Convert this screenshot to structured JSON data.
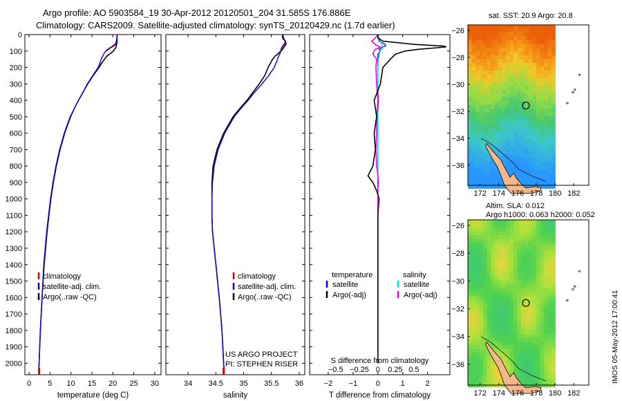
{
  "title": {
    "line1": "Argo profile: AO 5903584_19 30-Apr-2012 20120501_204 31.585S 176.886E",
    "line2": "Climatology: CARS2009. Satellite-adjusted climatology: synTS_20120429.nc (1.7d earlier)"
  },
  "stamp": "IMOS 05-May-2012 17:00:41",
  "depth_ticks": [
    0,
    100,
    200,
    300,
    400,
    500,
    600,
    700,
    800,
    900,
    1000,
    1100,
    1200,
    1300,
    1400,
    1500,
    1600,
    1700,
    1800,
    1900,
    2000
  ],
  "colors": {
    "climatology": "#dd0000",
    "satellite": "#0000ee",
    "argo": "#000000",
    "sat_s": "#00dddd",
    "argo_s": "#ee00ee",
    "land": "#f5b88a"
  },
  "chart_data": [
    {
      "type": "line",
      "id": "temperature",
      "xlabel": "temperature (deg C)",
      "ylabel": "depth",
      "xlim": [
        -1,
        31.5
      ],
      "ylim": [
        2070,
        0
      ],
      "x_ticks": [
        "0",
        "5",
        "10",
        "15",
        "20",
        "25",
        "30"
      ],
      "x_tick_values": [
        0,
        5,
        10,
        15,
        20,
        25,
        30
      ],
      "legend": [
        "climatology",
        "satellite-adj. clim.",
        "Argo(..raw -QC)"
      ],
      "depth": [
        0,
        10,
        20,
        30,
        40,
        50,
        60,
        70,
        80,
        90,
        100,
        110,
        120,
        130,
        150,
        175,
        200,
        250,
        300,
        350,
        400,
        450,
        500,
        600,
        700,
        800,
        900,
        1000,
        1200,
        1400,
        1600,
        1800,
        2000,
        2050
      ],
      "series": [
        {
          "name": "climatology",
          "values": [
            21.0,
            21.0,
            20.9,
            20.9,
            20.8,
            20.7,
            20.4,
            19.9,
            19.3,
            18.7,
            18.3,
            18.0,
            17.8,
            17.6,
            17.2,
            16.9,
            16.5,
            15.2,
            13.9,
            12.9,
            11.8,
            10.8,
            9.8,
            8.4,
            7.3,
            6.4,
            5.7,
            5.1,
            4.2,
            3.5,
            3.1,
            2.7,
            2.4,
            2.3
          ]
        },
        {
          "name": "satellite",
          "values": [
            21.0,
            21.0,
            21.0,
            20.9,
            20.9,
            20.9,
            20.7,
            20.2,
            19.5,
            18.9,
            18.4,
            18.0,
            17.8,
            17.6,
            17.2,
            16.9,
            16.5,
            15.2,
            13.9,
            12.9,
            11.8,
            10.8,
            9.8,
            8.4,
            7.3,
            6.4,
            5.7,
            5.1,
            4.2,
            3.5,
            3.1,
            2.7,
            2.4,
            2.3
          ]
        },
        {
          "name": "argo",
          "values": [
            21.0,
            21.0,
            21.0,
            21.0,
            21.0,
            21.0,
            20.9,
            20.8,
            20.7,
            20.4,
            20.1,
            19.7,
            19.2,
            18.6,
            18.0,
            17.3,
            16.7,
            15.3,
            14.0,
            12.9,
            11.8,
            10.8,
            9.9,
            8.5,
            7.4,
            6.5,
            5.8,
            5.2,
            4.3,
            3.6,
            3.1,
            2.7,
            2.4,
            2.3
          ]
        }
      ]
    },
    {
      "type": "line",
      "id": "salinity",
      "xlabel": "salinity",
      "ylabel": "depth",
      "xlim": [
        33.6,
        36.1
      ],
      "ylim": [
        2070,
        0
      ],
      "x_ticks": [
        "34",
        "34.5",
        "35",
        "35.5",
        "36"
      ],
      "x_tick_values": [
        34,
        34.5,
        35,
        35.5,
        36
      ],
      "legend": [
        "climatology",
        "satellite-adj. clim.",
        "Argo(..raw -QC)"
      ],
      "annotation": [
        "US ARGO PROJECT",
        "PI: STEPHEN RISER"
      ],
      "depth": [
        0,
        10,
        20,
        30,
        40,
        50,
        60,
        70,
        80,
        90,
        100,
        110,
        120,
        130,
        150,
        175,
        200,
        250,
        300,
        350,
        400,
        450,
        500,
        600,
        700,
        800,
        900,
        1000,
        1100,
        1200,
        1400,
        1600,
        1800,
        2000,
        2050
      ],
      "series": [
        {
          "name": "climatology",
          "values": [
            35.71,
            35.71,
            35.72,
            35.73,
            35.74,
            35.74,
            35.72,
            35.7,
            35.68,
            35.67,
            35.67,
            35.66,
            35.65,
            35.63,
            35.61,
            35.58,
            35.55,
            35.45,
            35.33,
            35.2,
            35.08,
            34.95,
            34.83,
            34.66,
            34.54,
            34.47,
            34.44,
            34.43,
            34.43,
            34.44,
            34.5,
            34.56,
            34.61,
            34.64,
            34.65
          ]
        },
        {
          "name": "satellite",
          "values": [
            35.71,
            35.71,
            35.72,
            35.73,
            35.75,
            35.76,
            35.74,
            35.71,
            35.69,
            35.68,
            35.67,
            35.66,
            35.65,
            35.63,
            35.61,
            35.58,
            35.55,
            35.45,
            35.33,
            35.2,
            35.08,
            34.95,
            34.83,
            34.66,
            34.54,
            34.47,
            34.44,
            34.43,
            34.43,
            34.44,
            34.5,
            34.56,
            34.61,
            34.64,
            34.65
          ]
        },
        {
          "name": "argo",
          "values": [
            35.7,
            35.7,
            35.7,
            35.72,
            35.75,
            35.76,
            35.76,
            35.74,
            35.72,
            35.7,
            35.67,
            35.64,
            35.61,
            35.57,
            35.52,
            35.48,
            35.44,
            35.38,
            35.28,
            35.17,
            35.06,
            34.93,
            34.81,
            34.64,
            34.52,
            34.45,
            34.43,
            34.43,
            34.43,
            34.44,
            34.5,
            34.56,
            34.61,
            34.64,
            34.65
          ]
        }
      ]
    },
    {
      "type": "line",
      "id": "differences",
      "xlabel": "T difference from climatology",
      "ylabel": "depth",
      "xlim": [
        -2.75,
        2.9
      ],
      "ylim": [
        2070,
        0
      ],
      "x_ticks": [
        "−2",
        "−1",
        "0",
        "1",
        "2"
      ],
      "x_tick_values": [
        -2,
        -1,
        0,
        1,
        2
      ],
      "top_label": "S difference from climatology",
      "s_ticks": [
        "−0.5",
        "−0.25",
        "0",
        "0.25",
        "0.5"
      ],
      "s_tick_positions": [
        -1.7,
        -0.75,
        0,
        0.7,
        1.45
      ],
      "legend_headers": [
        "temperature",
        "salinity"
      ],
      "legend": [
        "satellite",
        "Argo(-adj)",
        "satellite",
        "Argo(-adj)"
      ],
      "depth": [
        0,
        20,
        40,
        60,
        70,
        75,
        80,
        90,
        100,
        120,
        150,
        200,
        300,
        400,
        500,
        600,
        700,
        800,
        860,
        900,
        950,
        1000,
        1100,
        1200,
        1400,
        1600,
        1800,
        2000
      ],
      "series": [
        {
          "name": "temperature satellite",
          "values": [
            0,
            0.02,
            0.05,
            0.3,
            0.3,
            0.2,
            0.15,
            0.05,
            0.1,
            0.0,
            0.0,
            0.0,
            0.0,
            0.02,
            0.0,
            0.0,
            0.0,
            0.0,
            0.0,
            0.02,
            0.0,
            0.0,
            0.0,
            0.0,
            0.0,
            0.0,
            0.0,
            0.0
          ]
        },
        {
          "name": "temperature argo",
          "values": [
            0,
            0,
            0.2,
            1.5,
            2.65,
            2.75,
            2.4,
            1.6,
            1.1,
            0.7,
            0.5,
            0.2,
            0.1,
            -0.15,
            -0.05,
            -0.15,
            -0.1,
            -0.2,
            -0.4,
            -0.2,
            -0.05,
            0.05,
            0.0,
            0.0,
            0.0,
            0.0,
            0.0,
            0.0
          ]
        },
        {
          "name": "salinity satellite",
          "values": [
            0.0,
            0.05,
            0.1,
            0.15,
            0.2,
            0.22,
            0.2,
            0.15,
            0.1,
            0.05,
            0.02,
            0.0,
            0.0,
            0.0,
            0.0,
            0.0,
            0.0,
            0.0,
            0.0,
            0.0,
            0.0,
            0.0,
            0.0,
            0.0,
            0.0,
            0.0,
            0.0,
            0.0
          ]
        },
        {
          "name": "salinity argo",
          "values": [
            0.0,
            -0.1,
            -0.25,
            -0.1,
            0.0,
            0.1,
            0.05,
            -0.1,
            -0.15,
            -0.2,
            -0.05,
            -0.08,
            -0.05,
            0.0,
            -0.05,
            -0.05,
            -0.08,
            -0.05,
            0.0,
            0.0,
            0.0,
            0.0,
            0.0,
            0.0,
            0.0,
            0.0,
            0.0,
            0.0
          ]
        }
      ]
    },
    {
      "type": "heatmap",
      "id": "sst_map",
      "title": "sat. SST: 20.9 Argo: 20.8",
      "x_ticks": [
        "172",
        "174",
        "176",
        "178",
        "180",
        "182"
      ],
      "x_tick_values": [
        172,
        174,
        176,
        178,
        180,
        182
      ],
      "y_ticks": [
        "−26",
        "−28",
        "−30",
        "−32",
        "−34",
        "−36"
      ],
      "y_tick_values": [
        -26,
        -28,
        -30,
        -32,
        -34,
        -36
      ],
      "lon_range": [
        170.7,
        183.6
      ],
      "lat_range": [
        -37.5,
        -25.6
      ],
      "float_position": [
        176.886,
        -31.585
      ]
    },
    {
      "type": "heatmap",
      "id": "sla_map",
      "title": [
        "Altim. SLA: 0.012",
        "Argo h1000: 0.063 h2000: 0.052"
      ],
      "x_ticks": [
        "172",
        "174",
        "176",
        "178",
        "180",
        "182"
      ],
      "x_tick_values": [
        172,
        174,
        176,
        178,
        180,
        182
      ],
      "y_ticks": [
        "−26",
        "−28",
        "−30",
        "−32",
        "−34",
        "−36"
      ],
      "y_tick_values": [
        -26,
        -28,
        -30,
        -32,
        -34,
        -36
      ],
      "lon_range": [
        170.7,
        183.6
      ],
      "lat_range": [
        -37.5,
        -25.6
      ],
      "float_position": [
        176.886,
        -31.585
      ]
    }
  ]
}
